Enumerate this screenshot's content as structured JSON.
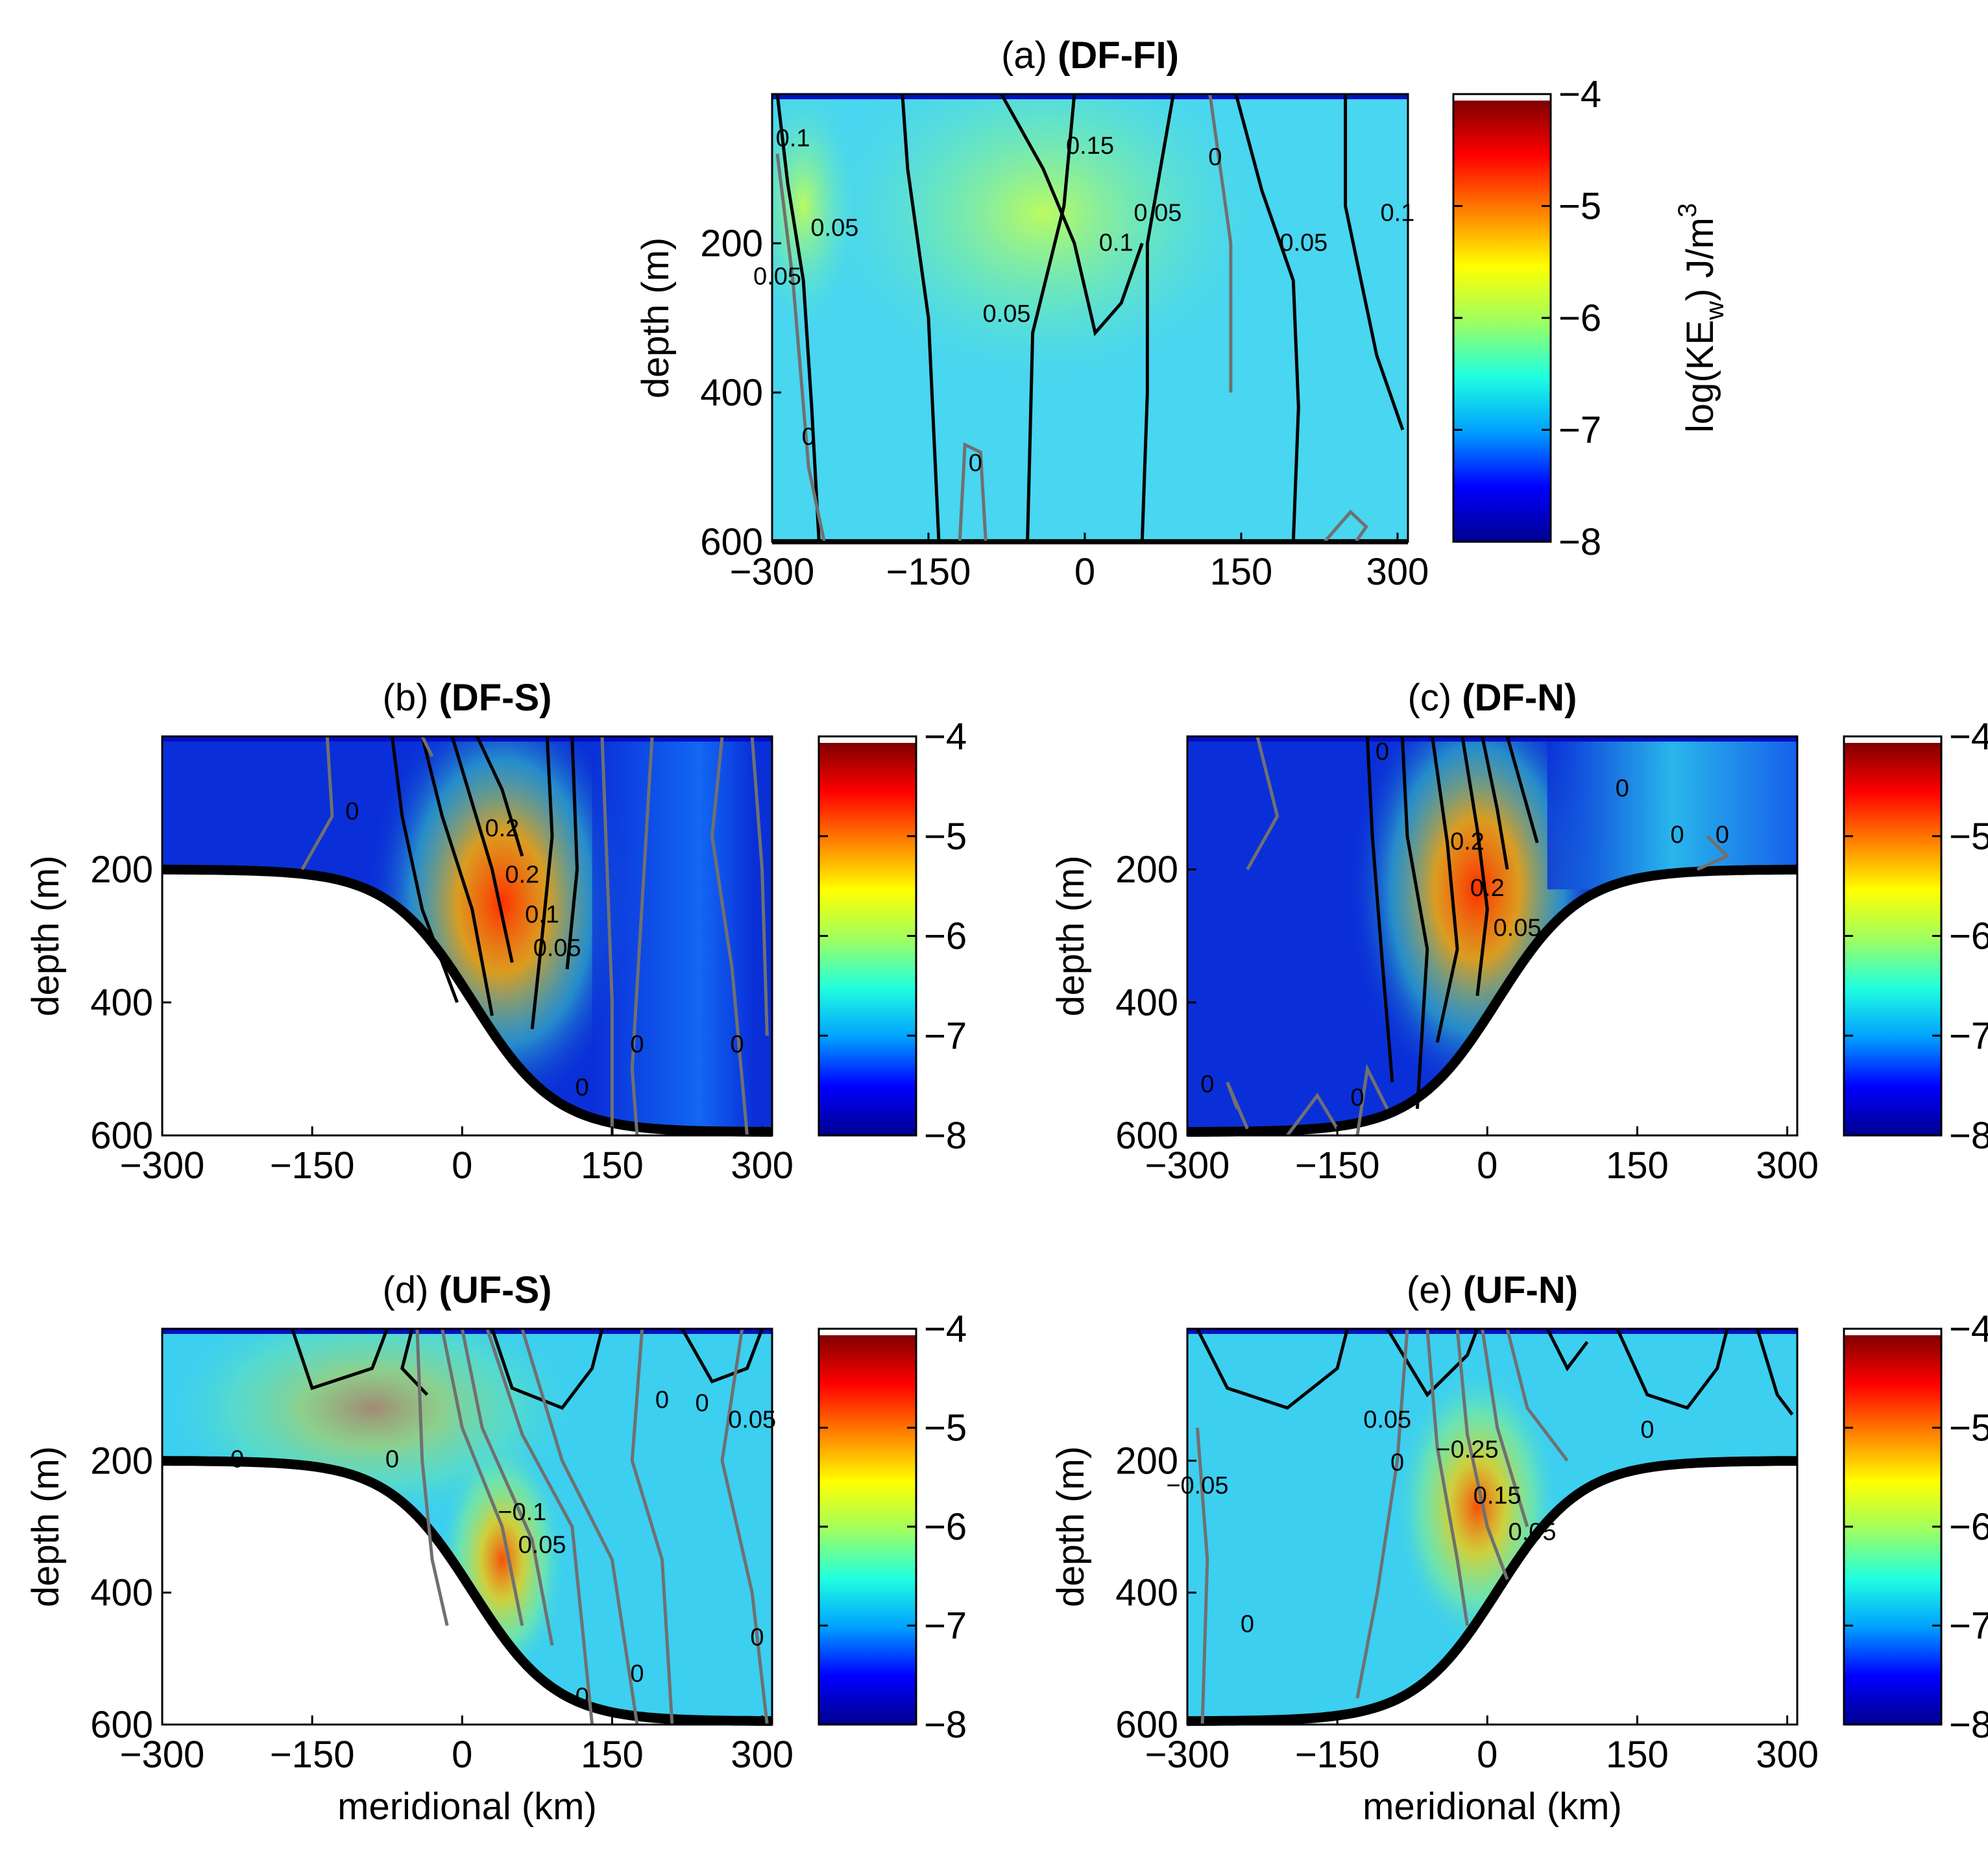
{
  "figure": {
    "colorbar_label": "log(KE",
    "colorbar_label_sub": "w",
    "colorbar_label_unit": ") J/m",
    "colorbar_label_sup": "3",
    "colormap": [
      "#00008f",
      "#0000ff",
      "#00a0ff",
      "#20ffe0",
      "#9fff60",
      "#ffff00",
      "#ff8000",
      "#ff0000",
      "#800000"
    ]
  },
  "chart_data": [
    {
      "id": "a",
      "type": "heatmap",
      "title_prefix": "(a) ",
      "title_bold": "(DF-FI)",
      "xlabel": "",
      "ylabel": "depth (m)",
      "xlim": [
        -300,
        310
      ],
      "ylim": [
        0,
        600
      ],
      "xticks": [
        "−300",
        "−150",
        "0",
        "150",
        "300"
      ],
      "xtick_values": [
        -300,
        -150,
        0,
        150,
        300
      ],
      "yticks": [
        "200",
        "400",
        "600"
      ],
      "ytick_values": [
        200,
        400,
        600
      ],
      "colorbar": {
        "min": -8,
        "max": -4,
        "ticks": [
          "−4",
          "−5",
          "−6",
          "−7",
          "−8"
        ],
        "tick_values": [
          -4,
          -5,
          -6,
          -7,
          -8
        ]
      },
      "topography": "flat",
      "contour_labels": [
        {
          "text": "0.1",
          "x": -280,
          "y": 70
        },
        {
          "text": "0.15",
          "x": 5,
          "y": 80
        },
        {
          "text": "0",
          "x": 125,
          "y": 95
        },
        {
          "text": "0.05",
          "x": -240,
          "y": 190
        },
        {
          "text": "0.1",
          "x": 30,
          "y": 210
        },
        {
          "text": "0.05",
          "x": 70,
          "y": 170
        },
        {
          "text": "0.05",
          "x": 210,
          "y": 210
        },
        {
          "text": "0.05",
          "x": -75,
          "y": 305
        },
        {
          "text": "0.05",
          "x": -295,
          "y": 255
        },
        {
          "text": "0",
          "x": -265,
          "y": 470
        },
        {
          "text": "0",
          "x": -105,
          "y": 505
        },
        {
          "text": "0.1",
          "x": 300,
          "y": 170
        }
      ]
    },
    {
      "id": "b",
      "type": "heatmap",
      "title_prefix": "(b) ",
      "title_bold": "(DF-S)",
      "xlabel": "",
      "ylabel": "depth (m)",
      "xlim": [
        -300,
        310
      ],
      "ylim": [
        0,
        600
      ],
      "xticks": [
        "−300",
        "−150",
        "0",
        "150",
        "300"
      ],
      "xtick_values": [
        -300,
        -150,
        0,
        150,
        300
      ],
      "yticks": [
        "200",
        "400",
        "600"
      ],
      "ytick_values": [
        200,
        400,
        600
      ],
      "colorbar": {
        "min": -8,
        "max": -4,
        "ticks": [
          "−4",
          "−5",
          "−6",
          "−7",
          "−8"
        ],
        "tick_values": [
          -4,
          -5,
          -6,
          -7,
          -8
        ]
      },
      "topography": "slope_up_left",
      "contour_labels": [
        {
          "text": "0",
          "x": -110,
          "y": 125
        },
        {
          "text": "0.2",
          "x": 40,
          "y": 150
        },
        {
          "text": "0.2",
          "x": 60,
          "y": 220
        },
        {
          "text": "0.1",
          "x": 80,
          "y": 280
        },
        {
          "text": "0.05",
          "x": 95,
          "y": 330
        },
        {
          "text": "0",
          "x": 175,
          "y": 475
        },
        {
          "text": "0",
          "x": 120,
          "y": 540
        },
        {
          "text": "0",
          "x": 275,
          "y": 475
        }
      ]
    },
    {
      "id": "c",
      "type": "heatmap",
      "title_prefix": "(c) ",
      "title_bold": "(DF-N)",
      "xlabel": "",
      "ylabel": "depth (m)",
      "xlim": [
        -300,
        310
      ],
      "ylim": [
        0,
        600
      ],
      "xticks": [
        "−300",
        "−150",
        "0",
        "150",
        "300"
      ],
      "xtick_values": [
        -300,
        -150,
        0,
        150,
        300
      ],
      "yticks": [
        "200",
        "400",
        "600"
      ],
      "ytick_values": [
        200,
        400,
        600
      ],
      "colorbar": {
        "min": -8,
        "max": -4,
        "ticks": [
          "−4",
          "−5",
          "−6",
          "−7",
          "−8"
        ],
        "tick_values": [
          -4,
          -5,
          -6,
          -7,
          -8
        ]
      },
      "topography": "slope_up_right",
      "contour_labels": [
        {
          "text": "0",
          "x": -105,
          "y": 35
        },
        {
          "text": "0",
          "x": 135,
          "y": 90
        },
        {
          "text": "0",
          "x": 190,
          "y": 160
        },
        {
          "text": "0",
          "x": 235,
          "y": 160
        },
        {
          "text": "0.2",
          "x": -20,
          "y": 170
        },
        {
          "text": "0.2",
          "x": 0,
          "y": 240
        },
        {
          "text": "0.05",
          "x": 30,
          "y": 300
        },
        {
          "text": "0",
          "x": -280,
          "y": 535
        },
        {
          "text": "0",
          "x": -130,
          "y": 555
        }
      ]
    },
    {
      "id": "d",
      "type": "heatmap",
      "title_prefix": "(d) ",
      "title_bold": "(UF-S)",
      "xlabel": "meridional (km)",
      "ylabel": "depth (m)",
      "xlim": [
        -300,
        310
      ],
      "ylim": [
        0,
        600
      ],
      "xticks": [
        "−300",
        "−150",
        "0",
        "150",
        "300"
      ],
      "xtick_values": [
        -300,
        -150,
        0,
        150,
        300
      ],
      "yticks": [
        "200",
        "400",
        "600"
      ],
      "ytick_values": [
        200,
        400,
        600
      ],
      "colorbar": {
        "min": -8,
        "max": -4,
        "ticks": [
          "−4",
          "−5",
          "−6",
          "−7",
          "−8"
        ],
        "tick_values": [
          -4,
          -5,
          -6,
          -7,
          -8
        ]
      },
      "topography": "slope_up_left",
      "contour_labels": [
        {
          "text": "0",
          "x": -225,
          "y": 210
        },
        {
          "text": "0",
          "x": -70,
          "y": 210
        },
        {
          "text": "−0.1",
          "x": 60,
          "y": 290
        },
        {
          "text": "0.05",
          "x": 80,
          "y": 340
        },
        {
          "text": "0",
          "x": 200,
          "y": 120
        },
        {
          "text": "0",
          "x": 240,
          "y": 125
        },
        {
          "text": "0.05",
          "x": 290,
          "y": 150
        },
        {
          "text": "0",
          "x": 120,
          "y": 570
        },
        {
          "text": "0",
          "x": 175,
          "y": 535
        },
        {
          "text": "0",
          "x": 295,
          "y": 480
        }
      ]
    },
    {
      "id": "e",
      "type": "heatmap",
      "title_prefix": "(e) ",
      "title_bold": "(UF-N)",
      "xlabel": "meridional (km)",
      "ylabel": "depth (m)",
      "xlim": [
        -300,
        310
      ],
      "ylim": [
        0,
        600
      ],
      "xticks": [
        "−300",
        "−150",
        "0",
        "150",
        "300"
      ],
      "xtick_values": [
        -300,
        -150,
        0,
        150,
        300
      ],
      "yticks": [
        "200",
        "400",
        "600"
      ],
      "ytick_values": [
        200,
        400,
        600
      ],
      "colorbar": {
        "min": -8,
        "max": -4,
        "ticks": [
          "−4",
          "−5",
          "−6",
          "−7",
          "−8"
        ],
        "tick_values": [
          -4,
          -5,
          -6,
          -7,
          -8
        ]
      },
      "topography": "slope_up_right",
      "contour_labels": [
        {
          "text": "0.05",
          "x": -100,
          "y": 150
        },
        {
          "text": "0",
          "x": -90,
          "y": 215
        },
        {
          "text": "−0.25",
          "x": -20,
          "y": 195
        },
        {
          "text": "0.15",
          "x": 10,
          "y": 265
        },
        {
          "text": "0.05",
          "x": 45,
          "y": 320
        },
        {
          "text": "0",
          "x": 160,
          "y": 165
        },
        {
          "text": "−0.05",
          "x": -290,
          "y": 250
        },
        {
          "text": "0",
          "x": -240,
          "y": 460
        }
      ]
    }
  ]
}
